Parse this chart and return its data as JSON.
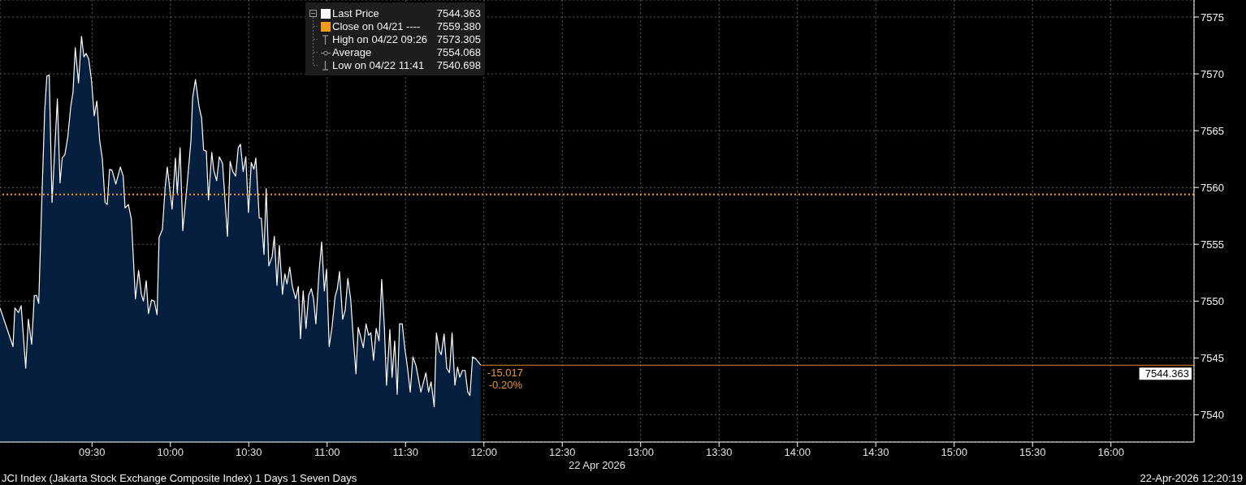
{
  "chart_data": {
    "type": "area",
    "title": "JCI Index (Jakarta Stock Exchange Composite Index) 1 Days 1 Seven Days",
    "xlabel": "22 Apr 2026",
    "x": [
      8.913,
      8.996,
      9.008,
      9.031,
      9.048,
      9.077,
      9.094,
      9.115,
      9.132,
      9.146,
      9.16,
      9.181,
      9.198,
      9.212,
      9.227,
      9.245,
      9.279,
      9.296,
      9.31,
      9.327,
      9.345,
      9.365,
      9.379,
      9.393,
      9.414,
      9.433,
      9.448,
      9.462,
      9.479,
      9.497,
      9.514,
      9.531,
      9.549,
      9.566,
      9.583,
      9.597,
      9.612,
      9.628,
      9.652,
      9.681,
      9.699,
      9.711,
      9.732,
      9.751,
      9.777,
      9.797,
      9.815,
      9.828,
      9.846,
      9.86,
      9.88,
      9.897,
      9.915,
      9.928,
      9.949,
      9.966,
      9.98,
      10.011,
      10.032,
      10.044,
      10.062,
      10.079,
      10.105,
      10.131,
      10.142,
      10.16,
      10.182,
      10.199,
      10.212,
      10.229,
      10.243,
      10.264,
      10.277,
      10.295,
      10.312,
      10.333,
      10.364,
      10.381,
      10.398,
      10.416,
      10.433,
      10.447,
      10.464,
      10.481,
      10.498,
      10.516,
      10.533,
      10.545,
      10.567,
      10.58,
      10.597,
      10.611,
      10.628,
      10.649,
      10.663,
      10.68,
      10.695,
      10.715,
      10.73,
      10.744,
      10.761,
      10.778,
      10.799,
      10.816,
      10.83,
      10.847,
      10.865,
      10.882,
      10.899,
      10.913,
      10.928,
      10.948,
      10.965,
      10.982,
      10.996,
      11.013,
      11.031,
      11.051,
      11.065,
      11.079,
      11.099,
      11.115,
      11.132,
      11.15,
      11.167,
      11.184,
      11.198,
      11.213,
      11.231,
      11.248,
      11.265,
      11.279,
      11.296,
      11.313,
      11.331,
      11.348,
      11.365,
      11.379,
      11.4,
      11.414,
      11.431,
      11.447,
      11.462,
      11.479,
      11.495,
      11.512,
      11.53,
      11.547,
      11.567,
      11.598,
      11.63,
      11.647,
      11.663,
      11.683,
      11.697,
      11.716,
      11.728,
      11.746,
      11.763,
      11.78,
      11.797,
      11.815,
      11.832,
      11.846,
      11.863,
      11.88,
      11.897,
      11.911,
      11.928,
      11.949,
      11.98
    ],
    "series": [
      {
        "name": "Last Price",
        "color": "#ffffff",
        "values": [
          7549.4,
          7546.0,
          7549.4,
          7549.0,
          7549.6,
          7544.1,
          7548.4,
          7546.2,
          7550.5,
          7550.5,
          7549.8,
          7559.4,
          7566.7,
          7569.8,
          7569.9,
          7558.7,
          7567.8,
          7560.4,
          7562.6,
          7562.9,
          7564.4,
          7567.2,
          7568.4,
          7572.3,
          7569.2,
          7573.305,
          7571.5,
          7571.8,
          7571.3,
          7569.4,
          7566.3,
          7567.6,
          7564.1,
          7562.5,
          7558.7,
          7558.5,
          7561.6,
          7561.5,
          7560.3,
          7561.8,
          7561.0,
          7558.2,
          7558.5,
          7557.2,
          7550.2,
          7552.7,
          7550.6,
          7550.0,
          7551.8,
          7548.9,
          7550.1,
          7550.0,
          7548.8,
          7555.6,
          7556.3,
          7559.9,
          7561.8,
          7558.1,
          7562.6,
          7559.5,
          7563.5,
          7556.2,
          7560.0,
          7564.1,
          7567.9,
          7569.5,
          7567.2,
          7566.1,
          7563.3,
          7563.2,
          7558.9,
          7563.1,
          7561.5,
          7560.6,
          7562.7,
          7562.1,
          7555.7,
          7562.3,
          7561.4,
          7561.0,
          7563.5,
          7563.8,
          7561.4,
          7562.7,
          7557.8,
          7562.2,
          7561.6,
          7562.6,
          7557.3,
          7557.3,
          7554.1,
          7559.9,
          7553.1,
          7553.9,
          7555.7,
          7551.4,
          7554.9,
          7550.6,
          7552.4,
          7551.5,
          7553.0,
          7551.3,
          7550.2,
          7551.3,
          7546.7,
          7550.9,
          7547.6,
          7550.5,
          7551.1,
          7550.2,
          7548.0,
          7552.5,
          7555.2,
          7550.9,
          7552.8,
          7546.0,
          7547.7,
          7550.4,
          7551.1,
          7552.6,
          7548.4,
          7549.2,
          7552.0,
          7550.2,
          7546.7,
          7543.6,
          7547.7,
          7546.9,
          7545.9,
          7548.0,
          7547.0,
          7547.2,
          7544.8,
          7547.6,
          7546.5,
          7551.9,
          7547.7,
          7542.6,
          7547.5,
          7543.3,
          7546.5,
          7541.8,
          7548.0,
          7548.0,
          7545.9,
          7544.2,
          7542.0,
          7545.1,
          7544.3,
          7542.0,
          7543.7,
          7542.0,
          7542.9,
          7540.698,
          7547.2,
          7545.6,
          7545.3,
          7547.1,
          7544.1,
          7543.7,
          7547.2,
          7542.6,
          7544.2,
          7543.3,
          7543.9,
          7543.9,
          7542.0,
          7541.7,
          7545.1,
          7544.9,
          7544.363
        ]
      },
      {
        "type": "line",
        "color": "#d98a2b",
        "x": [
          11.98,
          16.53
        ],
        "values": [
          7544.363,
          7544.363
        ]
      }
    ],
    "xlim": [
      8.913,
      16.53
    ],
    "xticks": [
      {
        "value": 9.5,
        "label": "09:30"
      },
      {
        "value": 10,
        "label": "10:00"
      },
      {
        "value": 10.5,
        "label": "10:30"
      },
      {
        "value": 11,
        "label": "11:00"
      },
      {
        "value": 11.5,
        "label": "11:30"
      },
      {
        "value": 12,
        "label": "12:00"
      },
      {
        "value": 12.5,
        "label": "12:30"
      },
      {
        "value": 13,
        "label": "13:00"
      },
      {
        "value": 13.5,
        "label": "13:30"
      },
      {
        "value": 14,
        "label": "14:00"
      },
      {
        "value": 14.5,
        "label": "14:30"
      },
      {
        "value": 15,
        "label": "15:00"
      },
      {
        "value": 15.5,
        "label": "15:30"
      },
      {
        "value": 16,
        "label": "16:00"
      }
    ],
    "ylim": [
      7537.6,
      7576.5
    ],
    "yticks": [
      7540,
      7545,
      7550,
      7555,
      7560,
      7565,
      7570,
      7575
    ],
    "ref_lines": [
      {
        "axis": "y",
        "value": 7559.38,
        "label": "Close on 04/21 ----",
        "color": "#f39c12",
        "line_style": "dotted"
      }
    ],
    "annotations": [
      "7544.363",
      "7559.380",
      "High on 04/22 09:26",
      "7573.305",
      "Average",
      "7554.068",
      "Low on 04/22 11:41",
      "7540.698",
      {
        "text": "-15.017",
        "x": 11.99,
        "y": 7544.363
      },
      {
        "text": "-0.20%",
        "x": 12.0,
        "y": 7544.363
      },
      {
        "text": "7544.363",
        "x": 16.53,
        "y": 7544.363
      },
      "22-Apr-2026 12:20:19"
    ],
    "grid": true,
    "legend": "top left"
  }
}
